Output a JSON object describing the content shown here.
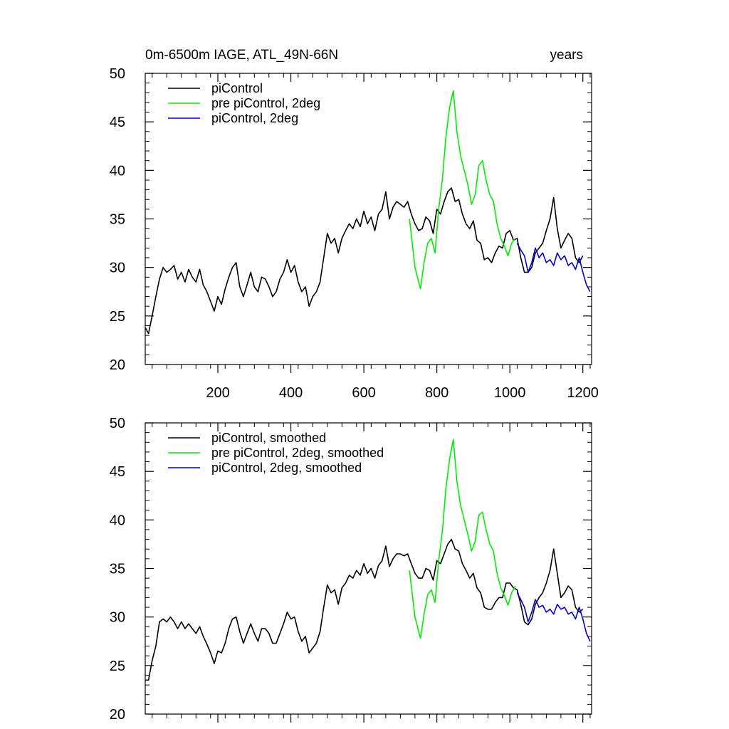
{
  "chart_data": [
    {
      "type": "line",
      "title": "0m-6500m IAGE, ATL_49N-66N",
      "units_label": "years",
      "xlabel": "",
      "ylabel": "",
      "xlim": [
        1,
        1224
      ],
      "ylim": [
        20,
        50
      ],
      "xticks": [
        200,
        400,
        600,
        800,
        1000,
        1200
      ],
      "xtick_labels": [
        "200",
        "400",
        "600",
        "800",
        "1000",
        "1200"
      ],
      "yticks": [
        20,
        25,
        30,
        35,
        40,
        45,
        50
      ],
      "ytick_labels": [
        "20",
        "25",
        "30",
        "35",
        "40",
        "45",
        "50"
      ],
      "grid": false,
      "legend_position": "top-left",
      "series": [
        {
          "name": "piControl",
          "color": "#000000",
          "x": [
            1,
            10,
            20,
            30,
            40,
            50,
            60,
            70,
            80,
            90,
            100,
            110,
            120,
            130,
            140,
            150,
            160,
            170,
            180,
            190,
            200,
            210,
            220,
            230,
            240,
            250,
            260,
            270,
            280,
            290,
            300,
            310,
            320,
            330,
            340,
            350,
            360,
            370,
            380,
            390,
            400,
            410,
            420,
            430,
            440,
            450,
            460,
            470,
            480,
            490,
            500,
            510,
            520,
            530,
            540,
            550,
            560,
            570,
            580,
            590,
            600,
            610,
            620,
            630,
            640,
            650,
            660,
            670,
            680,
            690,
            700,
            710,
            720,
            730,
            740,
            750,
            760,
            770,
            780,
            790,
            800,
            810,
            820,
            830,
            840,
            850,
            860,
            870,
            880,
            890,
            900,
            910,
            920,
            930,
            940,
            950,
            960,
            970,
            980,
            990,
            1000,
            1010,
            1020,
            1030,
            1040,
            1050,
            1060,
            1070,
            1080,
            1090,
            1100,
            1110,
            1120,
            1130,
            1140,
            1150,
            1160,
            1170,
            1180,
            1190,
            1200
          ],
          "values": [
            23.8,
            23.2,
            25.0,
            27.0,
            28.8,
            30.0,
            29.5,
            29.8,
            30.2,
            28.8,
            29.5,
            28.5,
            29.8,
            29.0,
            28.5,
            29.8,
            28.2,
            27.5,
            26.5,
            25.5,
            27.0,
            26.2,
            27.8,
            29.0,
            30.0,
            30.5,
            28.0,
            27.0,
            28.2,
            29.5,
            28.0,
            27.5,
            29.0,
            28.8,
            28.0,
            27.0,
            27.5,
            28.8,
            29.5,
            30.8,
            29.5,
            30.2,
            28.5,
            27.5,
            28.0,
            26.0,
            27.0,
            27.5,
            28.5,
            31.0,
            33.5,
            32.5,
            33.0,
            31.5,
            33.0,
            33.8,
            34.5,
            34.0,
            35.0,
            34.2,
            35.8,
            34.5,
            35.2,
            33.8,
            35.5,
            36.0,
            37.8,
            35.0,
            36.2,
            36.8,
            36.5,
            36.2,
            36.8,
            35.5,
            34.5,
            33.8,
            34.0,
            35.2,
            34.8,
            33.5,
            36.0,
            35.5,
            36.8,
            37.8,
            38.2,
            36.8,
            37.0,
            35.5,
            34.5,
            34.0,
            34.8,
            32.8,
            32.5,
            30.8,
            31.0,
            30.5,
            31.5,
            32.2,
            32.0,
            33.5,
            33.8,
            32.8,
            33.0,
            31.0,
            29.5,
            29.5,
            30.0,
            31.5,
            32.0,
            32.5,
            33.8,
            35.0,
            37.2,
            34.0,
            32.0,
            32.8,
            33.5,
            33.0,
            31.0,
            30.5,
            31.2
          ]
        },
        {
          "name": "pre piControl, 2deg",
          "color": "#00ee00",
          "x": [
            725,
            740,
            755,
            765,
            775,
            785,
            795,
            805,
            815,
            825,
            835,
            845,
            855,
            865,
            875,
            885,
            895,
            905,
            915,
            925,
            935,
            945,
            955,
            965,
            975,
            985,
            995,
            1005,
            1015
          ],
          "values": [
            35.0,
            30.0,
            27.8,
            30.5,
            32.5,
            33.0,
            31.5,
            36.0,
            39.0,
            43.5,
            46.5,
            48.2,
            44.0,
            41.5,
            40.0,
            38.5,
            36.5,
            37.5,
            40.5,
            41.0,
            39.0,
            37.5,
            36.8,
            34.5,
            33.0,
            32.2,
            31.2,
            32.5,
            33.0
          ]
        },
        {
          "name": "piControl, 2deg",
          "color": "#0000cc",
          "x": [
            1020,
            1030,
            1040,
            1050,
            1060,
            1070,
            1080,
            1090,
            1100,
            1110,
            1120,
            1130,
            1140,
            1150,
            1160,
            1170,
            1180,
            1190,
            1200,
            1210,
            1220
          ],
          "values": [
            32.5,
            31.8,
            31.2,
            29.5,
            30.5,
            32.0,
            31.0,
            31.5,
            30.5,
            30.8,
            30.2,
            31.5,
            30.8,
            31.2,
            30.2,
            30.5,
            29.8,
            31.0,
            29.5,
            28.2,
            27.5
          ]
        }
      ]
    },
    {
      "type": "line",
      "xlim": [
        1,
        1224
      ],
      "ylim": [
        20,
        50
      ],
      "xticks": [
        200,
        400,
        600,
        800,
        1000,
        1200
      ],
      "yticks": [
        20,
        25,
        30,
        35,
        40,
        45,
        50
      ],
      "ytick_labels": [
        "20",
        "25",
        "30",
        "35",
        "40",
        "45",
        "50"
      ],
      "grid": false,
      "legend_position": "top-left",
      "series": [
        {
          "name": "piControl, smoothed",
          "color": "#000000",
          "x": [
            1,
            10,
            20,
            30,
            40,
            50,
            60,
            70,
            80,
            90,
            100,
            110,
            120,
            130,
            140,
            150,
            160,
            170,
            180,
            190,
            200,
            210,
            220,
            230,
            240,
            250,
            260,
            270,
            280,
            290,
            300,
            310,
            320,
            330,
            340,
            350,
            360,
            370,
            380,
            390,
            400,
            410,
            420,
            430,
            440,
            450,
            460,
            470,
            480,
            490,
            500,
            510,
            520,
            530,
            540,
            550,
            560,
            570,
            580,
            590,
            600,
            610,
            620,
            630,
            640,
            650,
            660,
            670,
            680,
            690,
            700,
            710,
            720,
            730,
            740,
            750,
            760,
            770,
            780,
            790,
            800,
            810,
            820,
            830,
            840,
            850,
            860,
            870,
            880,
            890,
            900,
            910,
            920,
            930,
            940,
            950,
            960,
            970,
            980,
            990,
            1000,
            1010,
            1020,
            1030,
            1040,
            1050,
            1060,
            1070,
            1080,
            1090,
            1100,
            1110,
            1120,
            1130,
            1140,
            1150,
            1160,
            1170,
            1180,
            1190,
            1200
          ],
          "values": [
            23.5,
            23.5,
            25.5,
            27.0,
            29.5,
            29.8,
            29.5,
            30.0,
            29.5,
            28.8,
            29.5,
            28.8,
            29.3,
            28.8,
            28.3,
            29.0,
            28.0,
            27.2,
            26.3,
            25.2,
            26.5,
            26.3,
            27.3,
            28.8,
            29.8,
            30.0,
            28.5,
            27.3,
            28.3,
            29.3,
            28.3,
            27.5,
            28.8,
            28.8,
            28.3,
            27.3,
            27.3,
            28.3,
            29.3,
            30.5,
            29.8,
            30.0,
            28.5,
            27.5,
            28.0,
            26.3,
            26.8,
            27.3,
            28.5,
            31.0,
            33.3,
            32.5,
            32.8,
            31.3,
            33.0,
            33.5,
            34.3,
            34.0,
            34.8,
            34.3,
            35.5,
            34.5,
            35.0,
            34.0,
            35.3,
            35.8,
            37.3,
            35.2,
            36.0,
            36.5,
            36.5,
            36.3,
            36.5,
            35.5,
            34.5,
            34.0,
            34.0,
            35.0,
            34.8,
            33.8,
            35.8,
            35.5,
            36.5,
            37.5,
            38.0,
            37.0,
            36.8,
            35.5,
            34.8,
            34.0,
            34.5,
            33.0,
            32.5,
            31.0,
            30.8,
            30.8,
            31.5,
            32.0,
            32.0,
            33.5,
            33.5,
            33.0,
            32.8,
            31.3,
            29.5,
            29.2,
            29.8,
            31.3,
            32.0,
            32.5,
            33.5,
            34.8,
            37.0,
            34.5,
            32.0,
            32.5,
            33.2,
            32.8,
            31.0,
            30.5,
            30.8
          ]
        },
        {
          "name": "pre piControl, 2deg, smoothed",
          "color": "#00ee00",
          "x": [
            725,
            740,
            755,
            765,
            775,
            785,
            795,
            805,
            815,
            825,
            835,
            845,
            855,
            865,
            875,
            885,
            895,
            905,
            915,
            925,
            935,
            945,
            955,
            965,
            975,
            985,
            995,
            1005,
            1015
          ],
          "values": [
            34.8,
            30.0,
            27.8,
            30.3,
            32.3,
            32.8,
            31.5,
            35.8,
            38.8,
            43.3,
            46.3,
            48.3,
            44.0,
            41.5,
            40.0,
            38.5,
            36.8,
            37.8,
            40.5,
            40.8,
            39.0,
            37.5,
            36.8,
            34.5,
            33.0,
            32.2,
            31.2,
            32.5,
            33.2
          ]
        },
        {
          "name": "piControl, 2deg, smoothed",
          "color": "#0000cc",
          "x": [
            1020,
            1030,
            1040,
            1050,
            1060,
            1070,
            1080,
            1090,
            1100,
            1110,
            1120,
            1130,
            1140,
            1150,
            1160,
            1170,
            1180,
            1190,
            1200,
            1210,
            1220
          ],
          "values": [
            32.5,
            31.8,
            31.0,
            29.5,
            30.5,
            31.8,
            31.0,
            31.2,
            30.5,
            30.8,
            30.3,
            31.3,
            30.8,
            31.0,
            30.3,
            30.5,
            29.8,
            31.0,
            29.8,
            28.3,
            27.5
          ]
        }
      ]
    }
  ]
}
